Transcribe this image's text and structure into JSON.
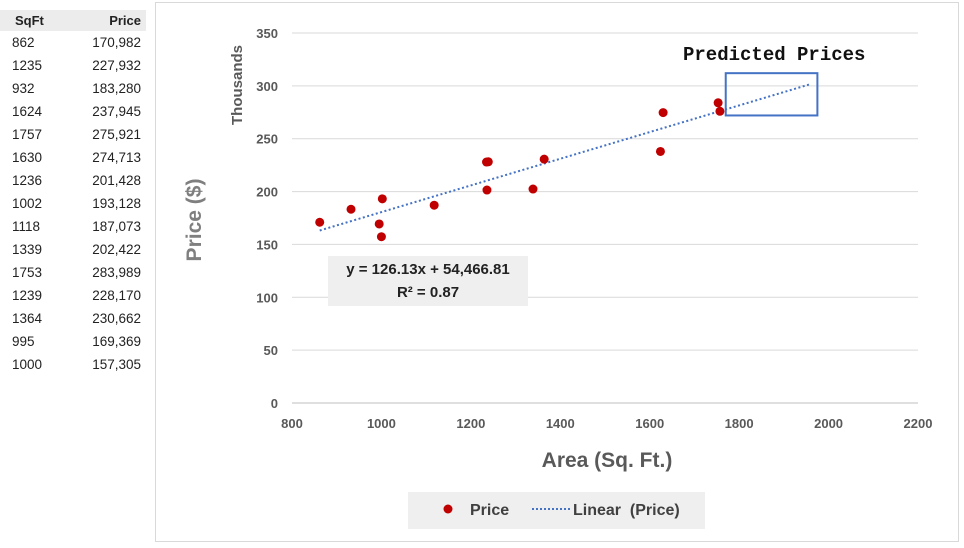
{
  "table": {
    "headers": [
      "SqFt",
      "Price"
    ],
    "rows": [
      [
        "862",
        "170,982"
      ],
      [
        "1235",
        "227,932"
      ],
      [
        "932",
        "183,280"
      ],
      [
        "1624",
        "237,945"
      ],
      [
        "1757",
        "275,921"
      ],
      [
        "1630",
        "274,713"
      ],
      [
        "1236",
        "201,428"
      ],
      [
        "1002",
        "193,128"
      ],
      [
        "1118",
        "187,073"
      ],
      [
        "1339",
        "202,422"
      ],
      [
        "1753",
        "283,989"
      ],
      [
        "1239",
        "228,170"
      ],
      [
        "1364",
        "230,662"
      ],
      [
        "995",
        "169,369"
      ],
      [
        "1000",
        "157,305"
      ]
    ]
  },
  "chart_data": {
    "type": "scatter",
    "title": "",
    "xlabel": "Area (Sq. Ft.)",
    "ylabel": "Price ($)",
    "y_units_label": "Thousands",
    "xlim": [
      800,
      2200
    ],
    "ylim": [
      0,
      350
    ],
    "x_ticks": [
      800,
      1000,
      1200,
      1400,
      1600,
      1800,
      2000,
      2200
    ],
    "y_ticks": [
      0,
      50,
      100,
      150,
      200,
      250,
      300,
      350
    ],
    "grid": "horizontal",
    "series": [
      {
        "name": "Price",
        "color": "#c00000",
        "x": [
          862,
          1235,
          932,
          1624,
          1757,
          1630,
          1236,
          1002,
          1118,
          1339,
          1753,
          1239,
          1364,
          995,
          1000
        ],
        "y": [
          170.982,
          227.932,
          183.28,
          237.945,
          275.921,
          274.713,
          201.428,
          193.128,
          187.073,
          202.422,
          283.989,
          228.17,
          230.662,
          169.369,
          157.305
        ]
      }
    ],
    "trendline": {
      "name": "Linear  (Price)",
      "style": "dotted",
      "color": "#4472c4",
      "x_range": [
        862,
        1960
      ],
      "slope": 0.12613,
      "intercept": 54.46681,
      "equation": "y = 126.13x + 54,466.81",
      "r_squared": "R² = 0.87"
    },
    "annotation": {
      "text": "Predicted Prices",
      "box_color": "#4472c4",
      "box_x": [
        1770,
        1975
      ],
      "box_y": [
        272,
        312
      ]
    },
    "legend": {
      "placement": "bottom-center",
      "entries": [
        "Price",
        "Linear  (Price)"
      ]
    }
  }
}
